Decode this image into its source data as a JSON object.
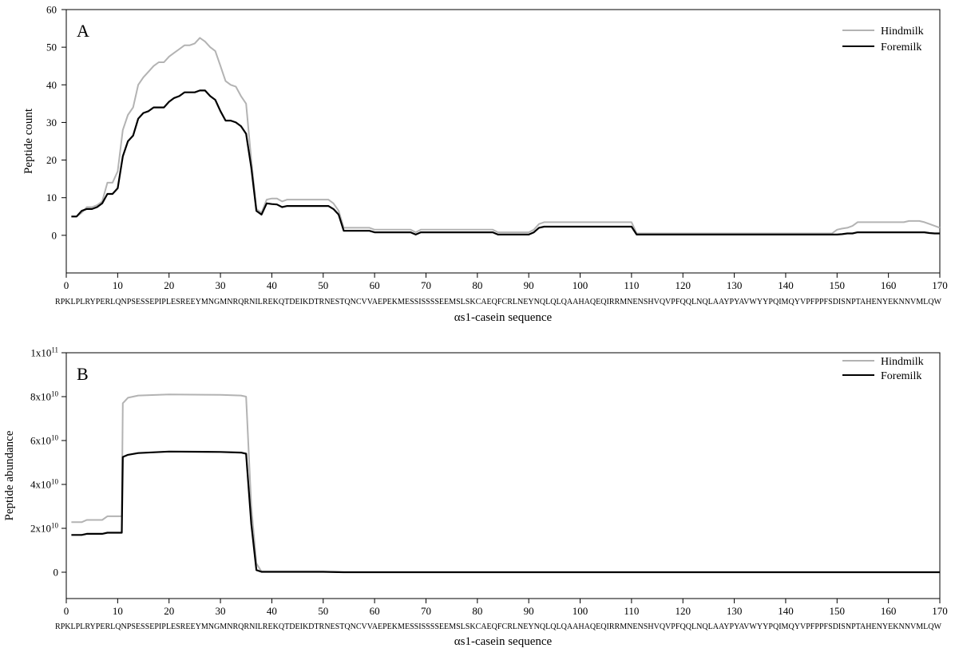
{
  "sequence_label": "RPKLPLRYPERLQNPSESSEPIPLESREEYMNGMNRQRNILREKQTDEIKDTRNESTQNCVVAEPEKMESSISSSSEEMSLSKCAEQFCRLNEYNQLQLQAAHAQEQIRRMNENSHVQVPFQQLNQLAAYPYAVWYYPQIMQYVPFPPFSDISNPTAHENYEKNNVMLQW",
  "colors": {
    "hindmilk": "#b3b3b3",
    "foremilk": "#000000",
    "axis": "#000000"
  },
  "chart_data": [
    {
      "type": "line",
      "panel_letter": "A",
      "xlabel": "αs1-casein sequence",
      "ylabel": "Peptide count",
      "xlim": [
        0,
        170
      ],
      "ylim": [
        -10,
        60
      ],
      "xticks": [
        0,
        10,
        20,
        30,
        40,
        50,
        60,
        70,
        80,
        90,
        100,
        110,
        120,
        130,
        140,
        150,
        160,
        170
      ],
      "yticks": [
        0,
        10,
        20,
        30,
        40,
        50,
        60
      ],
      "ytick_labels": [
        "0",
        "10",
        "20",
        "30",
        "40",
        "50",
        "60"
      ],
      "legend_position": "top-right",
      "series": [
        {
          "name": "Hindmilk",
          "color": "#b3b3b3",
          "x": [
            1,
            2,
            3,
            4,
            5,
            6,
            7,
            8,
            9,
            10,
            11,
            12,
            13,
            14,
            15,
            16,
            17,
            18,
            19,
            20,
            21,
            22,
            23,
            24,
            25,
            26,
            27,
            28,
            29,
            30,
            31,
            32,
            33,
            34,
            35,
            36,
            37,
            38,
            39,
            40,
            41,
            42,
            43,
            44,
            45,
            46,
            47,
            48,
            49,
            50,
            51,
            52,
            53,
            54,
            55,
            56,
            57,
            58,
            59,
            60,
            61,
            62,
            63,
            64,
            65,
            66,
            67,
            68,
            69,
            70,
            75,
            80,
            83,
            84,
            90,
            91,
            92,
            93,
            100,
            105,
            109,
            110,
            111,
            120,
            130,
            140,
            148,
            149,
            150,
            151,
            152,
            153,
            154,
            155,
            160,
            163,
            164,
            165,
            166,
            167,
            168,
            169,
            170
          ],
          "y": [
            5,
            5,
            6,
            7.5,
            7.5,
            8,
            9,
            14,
            14,
            17,
            28,
            32,
            34,
            40,
            42,
            43.5,
            45,
            46,
            46,
            47.5,
            48.5,
            49.5,
            50.5,
            50.5,
            51,
            52.5,
            51.5,
            50,
            49,
            45,
            41,
            40,
            39.5,
            37,
            35,
            20,
            7,
            6,
            9.5,
            9.8,
            9.8,
            9,
            9.5,
            9.5,
            9.5,
            9.5,
            9.5,
            9.5,
            9.5,
            9.5,
            9.5,
            8.5,
            6.5,
            2,
            2,
            2,
            2,
            2,
            2,
            1.5,
            1.5,
            1.5,
            1.5,
            1.5,
            1.5,
            1.5,
            1.5,
            0.8,
            1.5,
            1.5,
            1.5,
            1.5,
            1.5,
            0.8,
            0.8,
            1.5,
            3,
            3.5,
            3.5,
            3.5,
            3.5,
            3.5,
            0.5,
            0.5,
            0.5,
            0.5,
            0.5,
            0.5,
            1.5,
            1.8,
            2,
            2.5,
            3.5,
            3.5,
            3.5,
            3.5,
            3.8,
            3.8,
            3.8,
            3.5,
            3,
            2.5,
            2
          ]
        },
        {
          "name": "Foremilk",
          "color": "#000000",
          "x": [
            1,
            2,
            3,
            4,
            5,
            6,
            7,
            8,
            9,
            10,
            11,
            12,
            13,
            14,
            15,
            16,
            17,
            18,
            19,
            20,
            21,
            22,
            23,
            24,
            25,
            26,
            27,
            28,
            29,
            30,
            31,
            32,
            33,
            34,
            35,
            36,
            37,
            38,
            39,
            40,
            41,
            42,
            43,
            44,
            45,
            46,
            47,
            48,
            49,
            50,
            51,
            52,
            53,
            54,
            55,
            56,
            57,
            58,
            59,
            60,
            61,
            62,
            63,
            64,
            65,
            66,
            67,
            68,
            69,
            70,
            75,
            80,
            83,
            84,
            90,
            91,
            92,
            93,
            100,
            105,
            109,
            110,
            111,
            120,
            130,
            140,
            148,
            149,
            150,
            151,
            152,
            153,
            154,
            155,
            160,
            163,
            164,
            165,
            166,
            167,
            168,
            169,
            170
          ],
          "y": [
            5,
            5,
            6.5,
            7,
            7,
            7.5,
            8.5,
            11,
            11,
            12.5,
            21,
            25,
            26.5,
            31,
            32.5,
            33,
            34,
            34,
            34,
            35.5,
            36.5,
            37,
            38,
            38,
            38,
            38.5,
            38.5,
            37,
            36,
            33,
            30.5,
            30.5,
            30,
            29,
            27,
            18,
            6.5,
            5.5,
            8.5,
            8.3,
            8.2,
            7.5,
            7.8,
            7.8,
            7.8,
            7.8,
            7.8,
            7.8,
            7.8,
            7.8,
            7.8,
            7,
            5.5,
            1.2,
            1.2,
            1.2,
            1.2,
            1.2,
            1.2,
            0.8,
            0.8,
            0.8,
            0.8,
            0.8,
            0.8,
            0.8,
            0.8,
            0.2,
            0.8,
            0.8,
            0.8,
            0.8,
            0.8,
            0.2,
            0.2,
            0.8,
            2,
            2.3,
            2.3,
            2.3,
            2.3,
            2.3,
            0.2,
            0.2,
            0.2,
            0.2,
            0.2,
            0.2,
            0.2,
            0.3,
            0.5,
            0.5,
            0.8,
            0.8,
            0.8,
            0.8,
            0.8,
            0.8,
            0.8,
            0.8,
            0.6,
            0.5,
            0.5
          ]
        }
      ]
    },
    {
      "type": "line",
      "panel_letter": "B",
      "xlabel": "αs1-casein sequence",
      "ylabel": "Peptide abundance",
      "xlim": [
        0,
        170
      ],
      "ylim": [
        -12000000000,
        100000000000
      ],
      "xticks": [
        0,
        10,
        20,
        30,
        40,
        50,
        60,
        70,
        80,
        90,
        100,
        110,
        120,
        130,
        140,
        150,
        160,
        170
      ],
      "yticks": [
        0,
        20000000000,
        40000000000,
        60000000000,
        80000000000,
        100000000000
      ],
      "ytick_labels": [
        {
          "base": "0",
          "exp": ""
        },
        {
          "base": "2x10",
          "exp": "10"
        },
        {
          "base": "4x10",
          "exp": "10"
        },
        {
          "base": "6x10",
          "exp": "10"
        },
        {
          "base": "8x10",
          "exp": "10"
        },
        {
          "base": "1x10",
          "exp": "11"
        }
      ],
      "legend_position": "top-right",
      "series": [
        {
          "name": "Hindmilk",
          "color": "#b3b3b3",
          "x": [
            1,
            3,
            4,
            7,
            8,
            10,
            10.8,
            11,
            12,
            14,
            20,
            30,
            34,
            35,
            36,
            37,
            38,
            40,
            50,
            54,
            60,
            100,
            170
          ],
          "y": [
            22800000000,
            22800000000,
            23800000000,
            23800000000,
            25500000000,
            25500000000,
            25500000000,
            77000000000,
            79500000000,
            80500000000,
            81000000000,
            80800000000,
            80500000000,
            80000000000,
            30000000000,
            4000000000,
            300000000,
            300000000,
            300000000,
            0,
            0,
            0,
            0
          ]
        },
        {
          "name": "Foremilk",
          "color": "#000000",
          "x": [
            1,
            3,
            4,
            7,
            8,
            10,
            10.8,
            11,
            12,
            14,
            20,
            30,
            34,
            35,
            36,
            37,
            38,
            40,
            50,
            54,
            60,
            100,
            170
          ],
          "y": [
            17000000000,
            17000000000,
            17500000000,
            17500000000,
            18000000000,
            18000000000,
            18000000000,
            52500000000,
            53500000000,
            54300000000,
            55000000000,
            54800000000,
            54500000000,
            54000000000,
            22000000000,
            1000000000,
            200000000,
            200000000,
            200000000,
            0,
            0,
            0,
            0
          ]
        }
      ]
    }
  ]
}
